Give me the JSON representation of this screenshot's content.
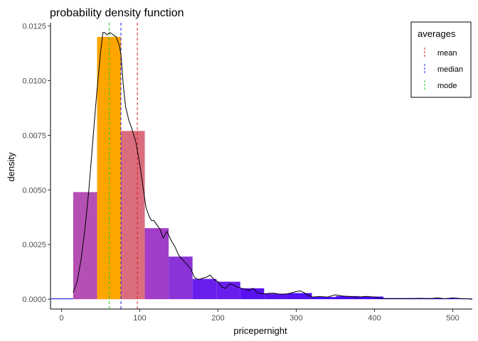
{
  "chart_data": {
    "type": "bar",
    "title": "probability density function",
    "xlabel": "pricepernight",
    "ylabel": "density",
    "xlim": [
      -14,
      525
    ],
    "ylim": [
      -0.00045,
      0.01265
    ],
    "x_ticks": [
      0,
      100,
      200,
      300,
      400,
      500
    ],
    "y_ticks": [
      0.0,
      0.0025,
      0.005,
      0.0075,
      0.01,
      0.0125
    ],
    "y_tick_labels": [
      "0.0000",
      "0.0025",
      "0.0050",
      "0.0075",
      "0.0100",
      "0.0125"
    ],
    "grid": false,
    "histogram": {
      "bin_width": 30.5,
      "bins": [
        {
          "x0": -15.5,
          "x1": 15,
          "density": 0.0,
          "color": "#0000ff"
        },
        {
          "x0": 15,
          "x1": 45.5,
          "density": 0.0049,
          "color": "#b44fb4"
        },
        {
          "x0": 45.5,
          "x1": 76,
          "density": 0.012,
          "color": "#ffa500"
        },
        {
          "x0": 76,
          "x1": 106.5,
          "density": 0.0077,
          "color": "#db6e7e"
        },
        {
          "x0": 106.5,
          "x1": 137,
          "density": 0.00325,
          "color": "#a13dc8"
        },
        {
          "x0": 137,
          "x1": 167.5,
          "density": 0.00195,
          "color": "#8a34d8"
        },
        {
          "x0": 167.5,
          "x1": 198,
          "density": 0.00093,
          "color": "#6a1eee"
        },
        {
          "x0": 198,
          "x1": 228.5,
          "density": 0.0008,
          "color": "#6a1eee"
        },
        {
          "x0": 228.5,
          "x1": 259,
          "density": 0.0005,
          "color": "#5a12f2"
        },
        {
          "x0": 259,
          "x1": 289.5,
          "density": 0.00025,
          "color": "#5a12f2"
        },
        {
          "x0": 289.5,
          "x1": 320,
          "density": 0.00028,
          "color": "#5010f4"
        },
        {
          "x0": 320,
          "x1": 350.5,
          "density": 0.0001,
          "color": "#4a0cf6"
        },
        {
          "x0": 350.5,
          "x1": 381,
          "density": 0.00014,
          "color": "#4a0cf6"
        },
        {
          "x0": 381,
          "x1": 411.5,
          "density": 0.00012,
          "color": "#4a0cf6"
        },
        {
          "x0": 411.5,
          "x1": 442,
          "density": 5e-05,
          "color": "#4408f8"
        },
        {
          "x0": 442,
          "x1": 472.5,
          "density": 5e-05,
          "color": "#4408f8"
        },
        {
          "x0": 472.5,
          "x1": 503,
          "density": 4e-05,
          "color": "#4008fa"
        },
        {
          "x0": 503,
          "x1": 533.5,
          "density": 3e-05,
          "color": "#4008fa"
        }
      ]
    },
    "density_curve": {
      "color": "#000000",
      "x": [
        15,
        20,
        25,
        30,
        35,
        40,
        45,
        50,
        53,
        55,
        58,
        62,
        66,
        70,
        74,
        76,
        79,
        82,
        86,
        90,
        95,
        100,
        104,
        108,
        112,
        115,
        118,
        122,
        126,
        130,
        135,
        140,
        145,
        150,
        155,
        160,
        165,
        170,
        175,
        180,
        185,
        190,
        195,
        200,
        205,
        210,
        215,
        220,
        225,
        230,
        235,
        240,
        245,
        250,
        255,
        260,
        270,
        280,
        290,
        300,
        305,
        310,
        315,
        320,
        330,
        340,
        350,
        360,
        370,
        380,
        390,
        400,
        410,
        420,
        430,
        440,
        450,
        460,
        470,
        480,
        490,
        500,
        510,
        520,
        525
      ],
      "y": [
        0.0003,
        0.0008,
        0.0018,
        0.0032,
        0.005,
        0.0072,
        0.0094,
        0.0113,
        0.0122,
        0.0122,
        0.0121,
        0.0122,
        0.0121,
        0.012,
        0.0116,
        0.0112,
        0.0098,
        0.0088,
        0.0082,
        0.0078,
        0.0072,
        0.0062,
        0.0052,
        0.0042,
        0.0038,
        0.0036,
        0.0036,
        0.0034,
        0.0032,
        0.0028,
        0.0031,
        0.0027,
        0.0024,
        0.002,
        0.0018,
        0.0016,
        0.0014,
        0.001,
        0.0009,
        0.00095,
        0.001,
        0.0011,
        0.0009,
        0.0008,
        0.00055,
        0.0005,
        0.0007,
        0.00065,
        0.00055,
        0.0005,
        0.00045,
        0.0004,
        0.0005,
        0.0003,
        0.00025,
        0.00025,
        0.00028,
        0.00022,
        0.00025,
        0.00035,
        0.00038,
        0.0003,
        0.00018,
        0.0001,
        0.00012,
        0.0001,
        0.0002,
        0.00014,
        0.00012,
        0.0001,
        0.00013,
        0.0001,
        3e-05,
        2e-05,
        2e-05,
        2e-05,
        3e-05,
        4e-05,
        2e-05,
        6e-05,
        2e-05,
        6e-05,
        3e-05,
        1e-05,
        0.0
      ]
    },
    "reference_lines": [
      {
        "name": "mean",
        "x": 97,
        "color": "#d62020"
      },
      {
        "name": "median",
        "x": 76,
        "color": "#2020e0"
      },
      {
        "name": "mode",
        "x": 61,
        "color": "#22cc22"
      }
    ],
    "legend": {
      "title": "averages",
      "position": "top-right",
      "entries": [
        "mean",
        "median",
        "mode"
      ]
    }
  }
}
